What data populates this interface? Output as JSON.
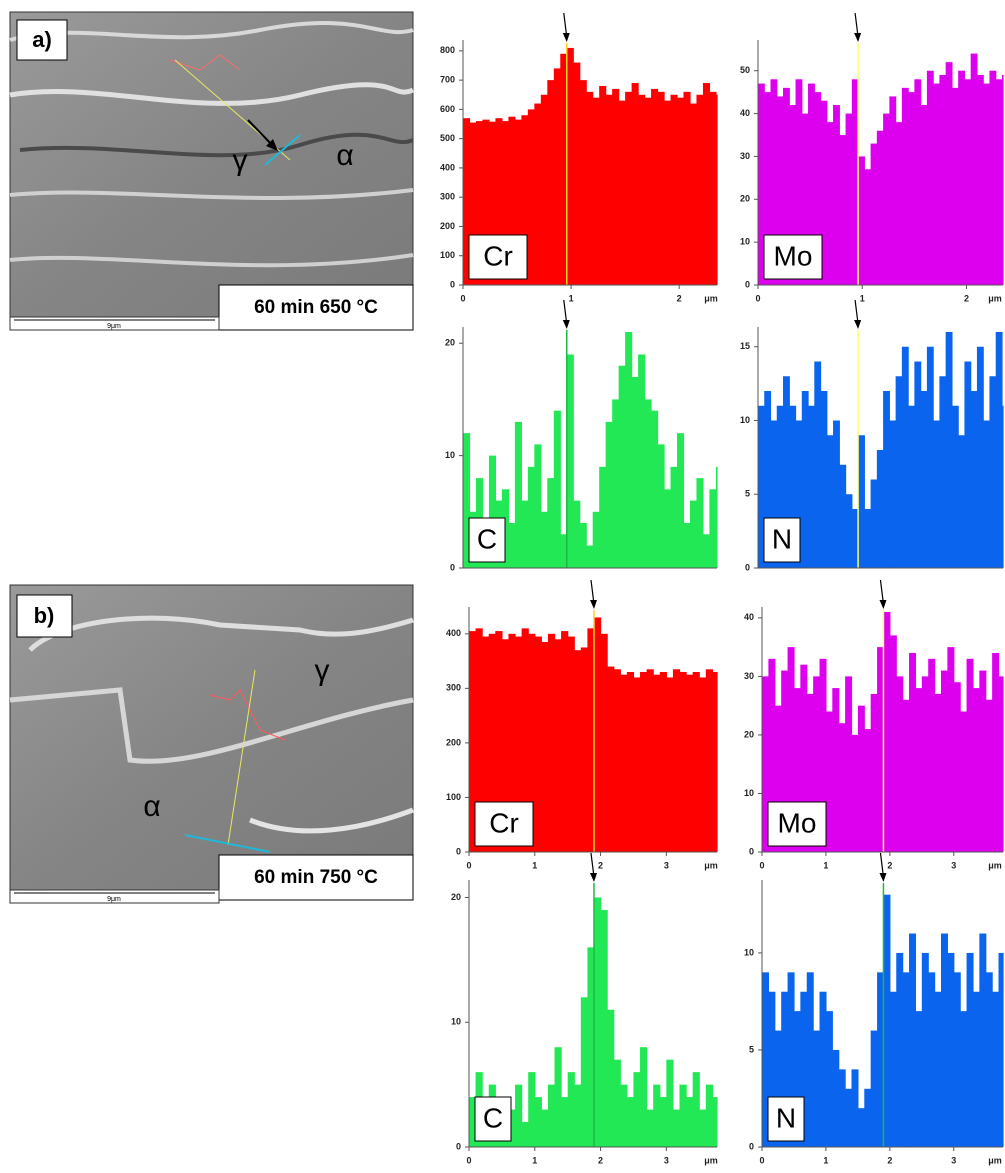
{
  "chart_data": [
    {
      "type": "step",
      "element": "Cr",
      "color": "#ff0000",
      "marker_x": 0.96,
      "marker_color": "#ffd21f",
      "x_label": "μm",
      "x": [
        0,
        0.06,
        0.12,
        0.18,
        0.24,
        0.3,
        0.36,
        0.42,
        0.48,
        0.54,
        0.6,
        0.66,
        0.72,
        0.78,
        0.84,
        0.9,
        0.96,
        1.02,
        1.08,
        1.14,
        1.2,
        1.26,
        1.32,
        1.38,
        1.44,
        1.5,
        1.56,
        1.62,
        1.68,
        1.74,
        1.8,
        1.86,
        1.92,
        1.98,
        2.04,
        2.1,
        2.16,
        2.22,
        2.28,
        2.34
      ],
      "values": [
        570,
        555,
        560,
        565,
        558,
        570,
        560,
        575,
        565,
        580,
        600,
        620,
        650,
        700,
        740,
        790,
        810,
        760,
        700,
        660,
        640,
        680,
        650,
        670,
        630,
        660,
        690,
        650,
        640,
        670,
        660,
        630,
        650,
        640,
        660,
        620,
        650,
        690,
        660,
        650
      ],
      "xlim": [
        0,
        2.35
      ],
      "xticks": [
        0,
        1,
        2
      ],
      "ylim": [
        0,
        820
      ],
      "yticks": [
        0,
        100,
        200,
        300,
        400,
        500,
        600,
        700,
        800
      ]
    },
    {
      "type": "step",
      "element": "Mo",
      "color": "#dd00ee",
      "marker_x": 0.96,
      "marker_color": "#ffff66",
      "x_label": "μm",
      "x": [
        0,
        0.06,
        0.12,
        0.18,
        0.24,
        0.3,
        0.36,
        0.42,
        0.48,
        0.54,
        0.6,
        0.66,
        0.72,
        0.78,
        0.84,
        0.9,
        0.96,
        1.02,
        1.08,
        1.14,
        1.2,
        1.26,
        1.32,
        1.38,
        1.44,
        1.5,
        1.56,
        1.62,
        1.68,
        1.74,
        1.8,
        1.86,
        1.92,
        1.98,
        2.04,
        2.1,
        2.16,
        2.22,
        2.28,
        2.34
      ],
      "values": [
        47,
        45,
        48,
        44,
        46,
        42,
        48,
        40,
        47,
        45,
        43,
        38,
        42,
        35,
        40,
        48,
        30,
        27,
        33,
        36,
        40,
        44,
        38,
        46,
        45,
        48,
        42,
        50,
        47,
        49,
        52,
        46,
        50,
        48,
        54,
        49,
        47,
        50,
        48,
        49
      ],
      "xlim": [
        0,
        2.35
      ],
      "xticks": [
        0,
        1,
        2
      ],
      "ylim": [
        0,
        56
      ],
      "yticks": [
        0,
        10,
        20,
        30,
        40,
        50
      ]
    },
    {
      "type": "step",
      "element": "C",
      "color": "#22e855",
      "marker_x": 0.96,
      "marker_color": "#1fb845",
      "x": [
        0,
        0.06,
        0.12,
        0.18,
        0.24,
        0.3,
        0.36,
        0.42,
        0.48,
        0.54,
        0.6,
        0.66,
        0.72,
        0.78,
        0.84,
        0.9,
        0.96,
        1.02,
        1.08,
        1.14,
        1.2,
        1.26,
        1.32,
        1.38,
        1.44,
        1.5,
        1.56,
        1.62,
        1.68,
        1.74,
        1.8,
        1.86,
        1.92,
        1.98,
        2.04,
        2.1,
        2.16,
        2.22,
        2.28,
        2.34
      ],
      "values": [
        12,
        5,
        8,
        3,
        10,
        6,
        7,
        4,
        13,
        6,
        9,
        11,
        5,
        8,
        14,
        3,
        19,
        6,
        4,
        2,
        5,
        9,
        13,
        15,
        18,
        21,
        17,
        19,
        15,
        14,
        11,
        7,
        9,
        12,
        4,
        6,
        8,
        3,
        7,
        9
      ],
      "xlim": [
        0,
        2.35
      ],
      "ylim": [
        0,
        21
      ],
      "yticks": [
        0,
        10,
        20
      ]
    },
    {
      "type": "step",
      "element": "N",
      "color": "#0a64ee",
      "marker_x": 0.96,
      "marker_color": "#ffff66",
      "x": [
        0,
        0.06,
        0.12,
        0.18,
        0.24,
        0.3,
        0.36,
        0.42,
        0.48,
        0.54,
        0.6,
        0.66,
        0.72,
        0.78,
        0.84,
        0.9,
        0.96,
        1.02,
        1.08,
        1.14,
        1.2,
        1.26,
        1.32,
        1.38,
        1.44,
        1.5,
        1.56,
        1.62,
        1.68,
        1.74,
        1.8,
        1.86,
        1.92,
        1.98,
        2.04,
        2.1,
        2.16,
        2.22,
        2.28,
        2.34
      ],
      "values": [
        11,
        12,
        10,
        11,
        13,
        11,
        10,
        12,
        11,
        14,
        12,
        9,
        10,
        7,
        5,
        4,
        9,
        4,
        6,
        8,
        12,
        10,
        13,
        15,
        11,
        14,
        12,
        15,
        10,
        13,
        16,
        11,
        9,
        14,
        12,
        15,
        10,
        13,
        16,
        11
      ],
      "xlim": [
        0,
        2.35
      ],
      "ylim": [
        0,
        16
      ],
      "yticks": [
        0,
        5,
        10,
        15
      ]
    },
    {
      "type": "step",
      "element": "Cr",
      "color": "#ff0000",
      "marker_x": 1.9,
      "marker_color": "#ffd21f",
      "x_label": "μm",
      "x": [
        0,
        0.1,
        0.2,
        0.3,
        0.4,
        0.5,
        0.6,
        0.7,
        0.8,
        0.9,
        1.0,
        1.1,
        1.2,
        1.3,
        1.4,
        1.5,
        1.6,
        1.7,
        1.8,
        1.9,
        2.0,
        2.1,
        2.2,
        2.3,
        2.4,
        2.5,
        2.6,
        2.7,
        2.8,
        2.9,
        3.0,
        3.1,
        3.2,
        3.3,
        3.4,
        3.5,
        3.6,
        3.7
      ],
      "values": [
        405,
        410,
        395,
        400,
        405,
        390,
        400,
        395,
        410,
        400,
        395,
        385,
        400,
        390,
        405,
        395,
        370,
        375,
        410,
        430,
        400,
        340,
        335,
        325,
        330,
        320,
        330,
        335,
        325,
        330,
        320,
        335,
        330,
        325,
        330,
        320,
        335,
        330
      ],
      "xlim": [
        0,
        3.77
      ],
      "xticks": [
        0,
        1,
        2,
        3
      ],
      "ylim": [
        0,
        440
      ],
      "yticks": [
        0,
        100,
        200,
        300,
        400
      ]
    },
    {
      "type": "step",
      "element": "Mo",
      "color": "#dd00ee",
      "marker_x": 1.9,
      "marker_color": "#ffff66",
      "x_label": "μm",
      "x": [
        0,
        0.1,
        0.2,
        0.3,
        0.4,
        0.5,
        0.6,
        0.7,
        0.8,
        0.9,
        1.0,
        1.1,
        1.2,
        1.3,
        1.4,
        1.5,
        1.6,
        1.7,
        1.8,
        1.9,
        2.0,
        2.1,
        2.2,
        2.3,
        2.4,
        2.5,
        2.6,
        2.7,
        2.8,
        2.9,
        3.0,
        3.1,
        3.2,
        3.3,
        3.4,
        3.5,
        3.6,
        3.7
      ],
      "values": [
        30,
        33,
        25,
        31,
        35,
        28,
        32,
        27,
        30,
        33,
        24,
        28,
        22,
        30,
        20,
        25,
        21,
        27,
        35,
        41,
        37,
        30,
        26,
        34,
        28,
        30,
        33,
        27,
        31,
        35,
        29,
        24,
        33,
        28,
        31,
        26,
        34,
        30
      ],
      "xlim": [
        0,
        3.77
      ],
      "xticks": [
        0,
        1,
        2,
        3
      ],
      "ylim": [
        0,
        41
      ],
      "yticks": [
        0,
        10,
        20,
        30,
        40
      ]
    },
    {
      "type": "step",
      "element": "C",
      "color": "#22e855",
      "marker_x": 1.9,
      "marker_color": "#1fb845",
      "x_label": "μm",
      "x": [
        0,
        0.1,
        0.2,
        0.3,
        0.4,
        0.5,
        0.6,
        0.7,
        0.8,
        0.9,
        1.0,
        1.1,
        1.2,
        1.3,
        1.4,
        1.5,
        1.6,
        1.7,
        1.8,
        1.9,
        2.0,
        2.1,
        2.2,
        2.3,
        2.4,
        2.5,
        2.6,
        2.7,
        2.8,
        2.9,
        3.0,
        3.1,
        3.2,
        3.3,
        3.4,
        3.5,
        3.6,
        3.7
      ],
      "values": [
        4,
        6,
        3,
        5,
        2,
        4,
        3,
        5,
        2,
        6,
        4,
        3,
        5,
        8,
        4,
        6,
        5,
        12,
        16,
        20,
        19,
        11,
        7,
        5,
        4,
        6,
        8,
        3,
        5,
        4,
        7,
        3,
        5,
        4,
        6,
        3,
        5,
        4
      ],
      "xlim": [
        0,
        3.77
      ],
      "xticks": [
        0,
        1,
        2,
        3
      ],
      "ylim": [
        0,
        21
      ],
      "yticks": [
        0,
        10,
        20
      ]
    },
    {
      "type": "step",
      "element": "N",
      "color": "#0a64ee",
      "marker_x": 1.9,
      "marker_color": "#1fb845",
      "x_label": "μm",
      "x": [
        0,
        0.1,
        0.2,
        0.3,
        0.4,
        0.5,
        0.6,
        0.7,
        0.8,
        0.9,
        1.0,
        1.1,
        1.2,
        1.3,
        1.4,
        1.5,
        1.6,
        1.7,
        1.8,
        1.9,
        2.0,
        2.1,
        2.2,
        2.3,
        2.4,
        2.5,
        2.6,
        2.7,
        2.8,
        2.9,
        3.0,
        3.1,
        3.2,
        3.3,
        3.4,
        3.5,
        3.6,
        3.7
      ],
      "values": [
        9,
        8,
        6,
        8,
        9,
        7,
        8,
        9,
        6,
        8,
        7,
        5,
        4,
        3,
        4,
        2,
        3,
        6,
        9,
        13,
        8,
        10,
        9,
        11,
        7,
        10,
        9,
        8,
        11,
        10,
        9,
        7,
        10,
        8,
        11,
        9,
        8,
        10
      ],
      "xlim": [
        0,
        3.77
      ],
      "xticks": [
        0,
        1,
        2,
        3
      ],
      "ylim": [
        0,
        13.5
      ],
      "yticks": [
        0,
        5,
        10
      ]
    }
  ],
  "micrographs": [
    {
      "label": "a)",
      "phases": [
        "γ",
        "α"
      ],
      "condition": "60 min 650 °C",
      "scale": "9μm"
    },
    {
      "label": "b)",
      "phases": [
        "γ",
        "α",
        "γ"
      ],
      "condition": "60 min 750 °C",
      "scale": "9μm"
    }
  ]
}
